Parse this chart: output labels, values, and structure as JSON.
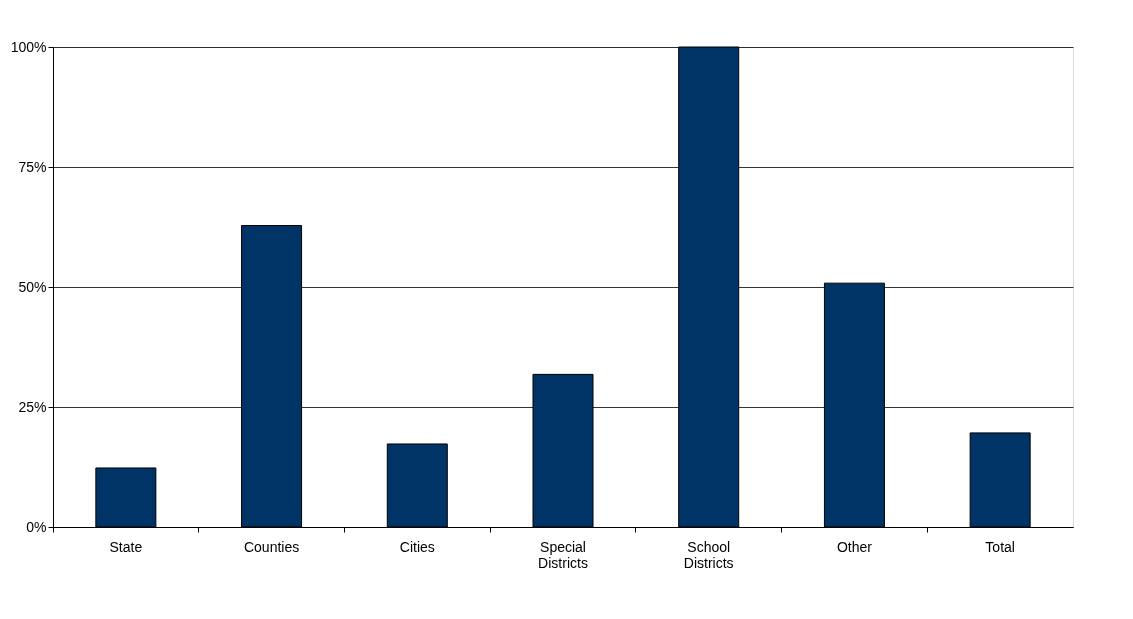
{
  "chart_data": {
    "type": "bar",
    "categories": [
      "State",
      "Counties",
      "Cities",
      "Special Districts",
      "School Districts",
      "Other",
      "Total"
    ],
    "values": [
      12.3,
      62.8,
      17.3,
      31.8,
      100,
      50.8,
      19.6
    ],
    "color": "#003366",
    "ylim": [
      0,
      100
    ],
    "yticks": [
      {
        "value": 0,
        "label": "0%"
      },
      {
        "value": 25,
        "label": "25%"
      },
      {
        "value": 50,
        "label": "50%"
      },
      {
        "value": 75,
        "label": "75%"
      },
      {
        "value": 100,
        "label": "100%"
      }
    ],
    "grid": "y"
  }
}
